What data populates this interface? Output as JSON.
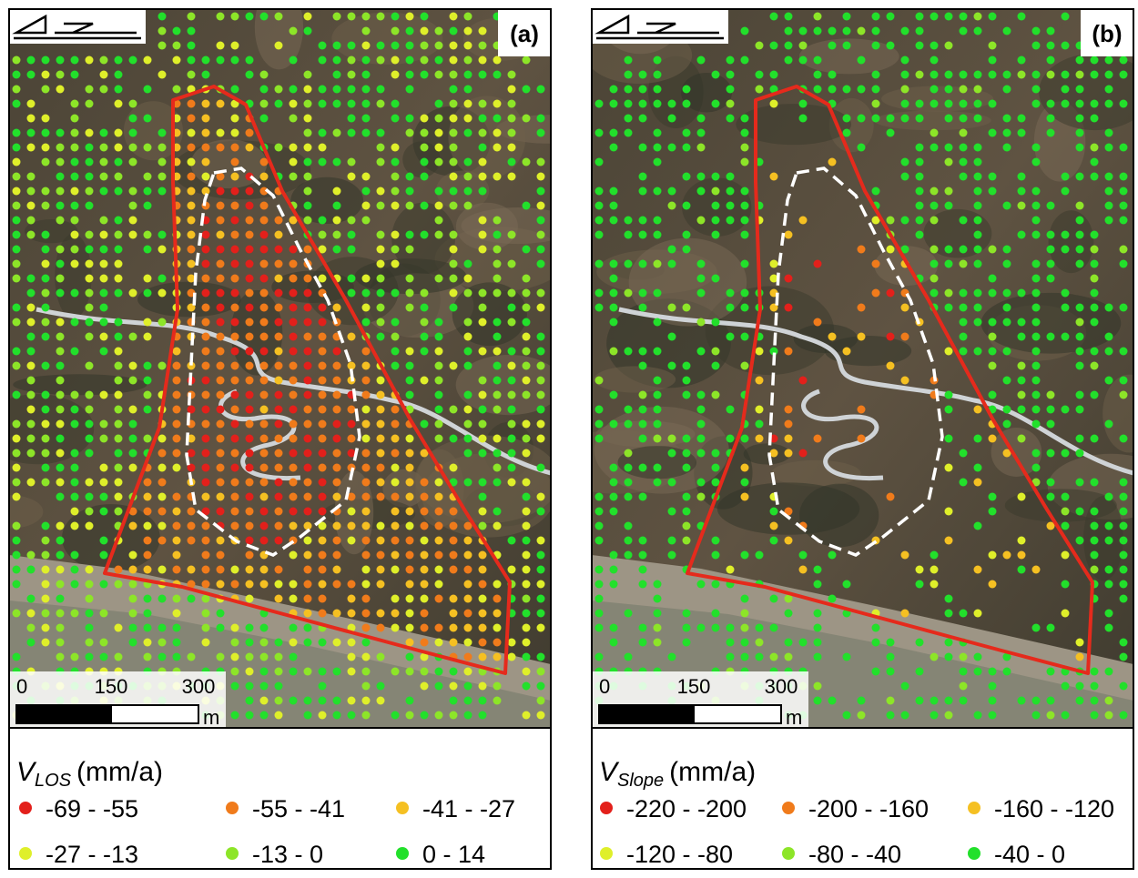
{
  "panels": [
    {
      "label": "(a)",
      "scale": {
        "ticks": [
          "0",
          "150",
          "300"
        ],
        "unit": "m"
      },
      "legend": {
        "title": "V",
        "subscript": "LOS",
        "unit": "(mm/a)",
        "items": [
          {
            "label": "-69 - -55",
            "color": "#e3201b"
          },
          {
            "label": "-55 - -41",
            "color": "#f07b1b"
          },
          {
            "label": "-41 - -27",
            "color": "#f5c022"
          },
          {
            "label": "-27 - -13",
            "color": "#dfef2a"
          },
          {
            "label": "-13 - 0",
            "color": "#8de528"
          },
          {
            "label": "0 - 14",
            "color": "#22e02b"
          }
        ]
      }
    },
    {
      "label": "(b)",
      "scale": {
        "ticks": [
          "0",
          "150",
          "300"
        ],
        "unit": "m"
      },
      "legend": {
        "title": "V",
        "subscript": "Slope",
        "unit": "(mm/a)",
        "items": [
          {
            "label": "-220 - -200",
            "color": "#e3201b"
          },
          {
            "label": "-200 - -160",
            "color": "#f07b1b"
          },
          {
            "label": "-160 - -120",
            "color": "#f5c022"
          },
          {
            "label": "-120 - -80",
            "color": "#dfef2a"
          },
          {
            "label": "-80 - -40",
            "color": "#8de528"
          },
          {
            "label": "-40 - 0",
            "color": "#22e02b"
          }
        ]
      }
    }
  ]
}
